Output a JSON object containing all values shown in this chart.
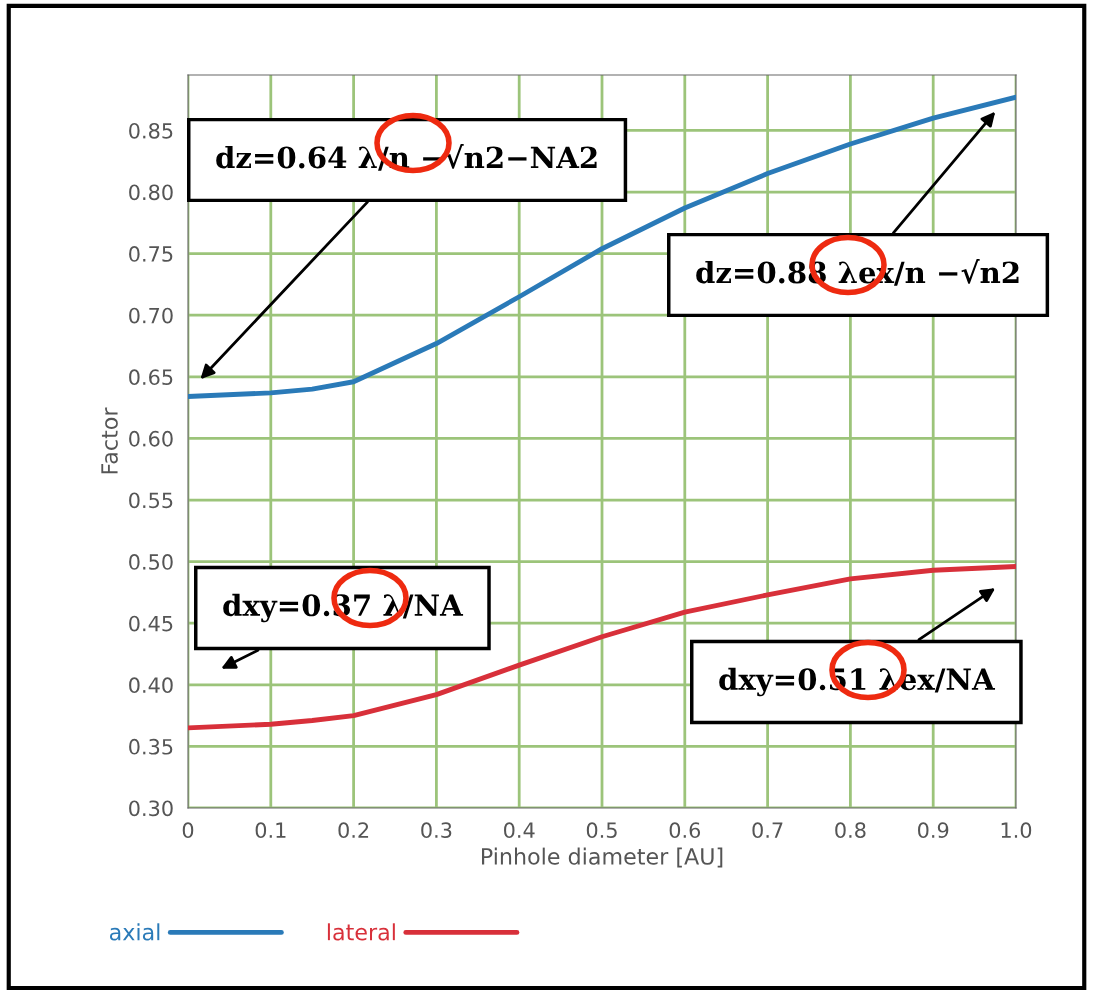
{
  "chart_data": {
    "type": "line",
    "xlabel": "Pinhole diameter [AU]",
    "ylabel": "Factor",
    "x": [
      0,
      0.1,
      0.15,
      0.2,
      0.3,
      0.4,
      0.5,
      0.6,
      0.7,
      0.8,
      0.9,
      1.0
    ],
    "series": [
      {
        "name": "axial",
        "color": "#2a7ab8",
        "values": [
          0.634,
          0.637,
          0.64,
          0.646,
          0.677,
          0.715,
          0.754,
          0.787,
          0.815,
          0.839,
          0.86,
          0.877
        ]
      },
      {
        "name": "lateral",
        "color": "#d8303a",
        "values": [
          0.365,
          0.368,
          0.371,
          0.375,
          0.392,
          0.416,
          0.439,
          0.459,
          0.473,
          0.486,
          0.493,
          0.496
        ]
      }
    ],
    "xlim": [
      0,
      1.0
    ],
    "ylim": [
      0.3,
      0.895
    ],
    "xticks": [
      0,
      0.1,
      0.2,
      0.3,
      0.4,
      0.5,
      0.6,
      0.7,
      0.8,
      0.9,
      {
        "value": 1.0,
        "label": "1.0"
      }
    ],
    "yticks": [
      {
        "value": 0.3,
        "label": "0.30"
      },
      0.35,
      {
        "value": 0.4,
        "label": "0.40"
      },
      0.45,
      {
        "value": 0.5,
        "label": "0.50"
      },
      0.55,
      {
        "value": 0.6,
        "label": "0.60"
      },
      0.65,
      {
        "value": 0.7,
        "label": "0.70"
      },
      0.75,
      {
        "value": 0.8,
        "label": "0.80"
      },
      0.85
    ],
    "grid": true,
    "legend": "bottom left",
    "marker": "none",
    "line_style": "solid",
    "annotations": [
      "dz=0.64 λ/n −√n2−NA2",
      "dz=0.88 λex/n −√n2",
      "dxy=0.37 λ/NA",
      "dxy=0.51 λex/NA"
    ]
  }
}
